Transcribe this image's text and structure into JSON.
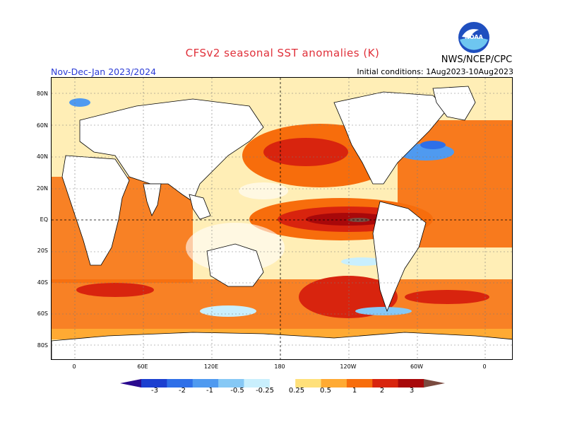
{
  "header": {
    "title": "CFSv2 seasonal SST anomalies (K)",
    "period": "Nov-Dec-Jan 2023/2024",
    "initial_conditions": "Initial conditions: 1Aug2023-10Aug2023",
    "agency": "NWS/NCEP/CPC",
    "logo_text": "NOAA"
  },
  "axes": {
    "lat_labels": [
      "80N",
      "60N",
      "40N",
      "20N",
      "EQ",
      "20S",
      "40S",
      "60S",
      "80S"
    ],
    "lon_labels": [
      "0",
      "60E",
      "120E",
      "180",
      "120W",
      "60W",
      "0"
    ]
  },
  "colorbar": {
    "labels": [
      "-3",
      "-2",
      "-1",
      "-0.5",
      "-0.25",
      "0.25",
      "0.5",
      "1",
      "2",
      "3"
    ],
    "colors": [
      "#2a0a8f",
      "#1b3fd0",
      "#2e6fe8",
      "#4f9af0",
      "#86c8f5",
      "#c9effd",
      "#ffffff",
      "#ffe07a",
      "#ffaa33",
      "#f76d0c",
      "#d8240e",
      "#a8080a",
      "#7a4b40"
    ]
  },
  "map_colors": {
    "land": "#ffffff",
    "neutral_ocean": "#ffffff",
    "weak_warm": "#ffe07a",
    "warm": "#ffaa33",
    "moderate_warm": "#f76d0c",
    "strong_warm": "#d8240e",
    "very_strong_warm": "#a8080a",
    "extreme_warm": "#7a4b40",
    "weak_cool": "#c9effd",
    "cool": "#86c8f5",
    "moderate_cool": "#4f9af0"
  }
}
